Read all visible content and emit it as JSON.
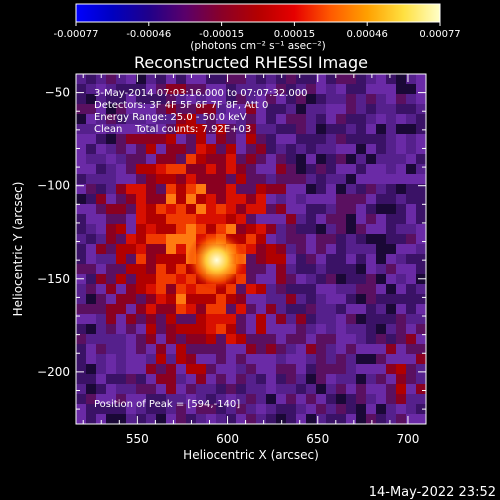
{
  "colorbar": {
    "tick_labels": [
      "-0.00077",
      "-0.00046",
      "-0.00015",
      "0.00015",
      "0.00046",
      "0.00077"
    ],
    "unit_label": "(photons cm⁻² s⁻¹ asec⁻²)",
    "colors": [
      "#0000ff",
      "#0000c0",
      "#20008a",
      "#5a006a",
      "#8a0028",
      "#b40000",
      "#e60000",
      "#ff5a00",
      "#ffa000",
      "#ffe040",
      "#ffffc8"
    ]
  },
  "chart_data": {
    "type": "heatmap",
    "title": "Reconstructed RHESSI Image",
    "xlabel": "Heliocentric X (arcsec)",
    "ylabel": "Heliocentric Y (arcsec)",
    "xlim": [
      516,
      710
    ],
    "ylim": [
      -228,
      -40
    ],
    "x_ticks": [
      550,
      600,
      650,
      700
    ],
    "x_tick_labels": [
      "550",
      "600",
      "650",
      "700"
    ],
    "y_ticks": [
      -50,
      -100,
      -150,
      -200
    ],
    "y_tick_labels": [
      "−50",
      "−100",
      "−150",
      "−200"
    ],
    "annotations": [
      " 3-May-2014 07:03:16.000 to 07:07:32.000",
      "Detectors: 3F 4F 5F 6F 7F 8F, Att 0",
      "Energy Range: 25.0 - 50.0 keV",
      "Clean    Total counts: 7.92E+03"
    ],
    "peak_label": "Position of Peak = [594,-140]",
    "peak": {
      "x": 594,
      "y": -140
    }
  },
  "footer": {
    "timestamp": "14-May-2022 23:52"
  }
}
